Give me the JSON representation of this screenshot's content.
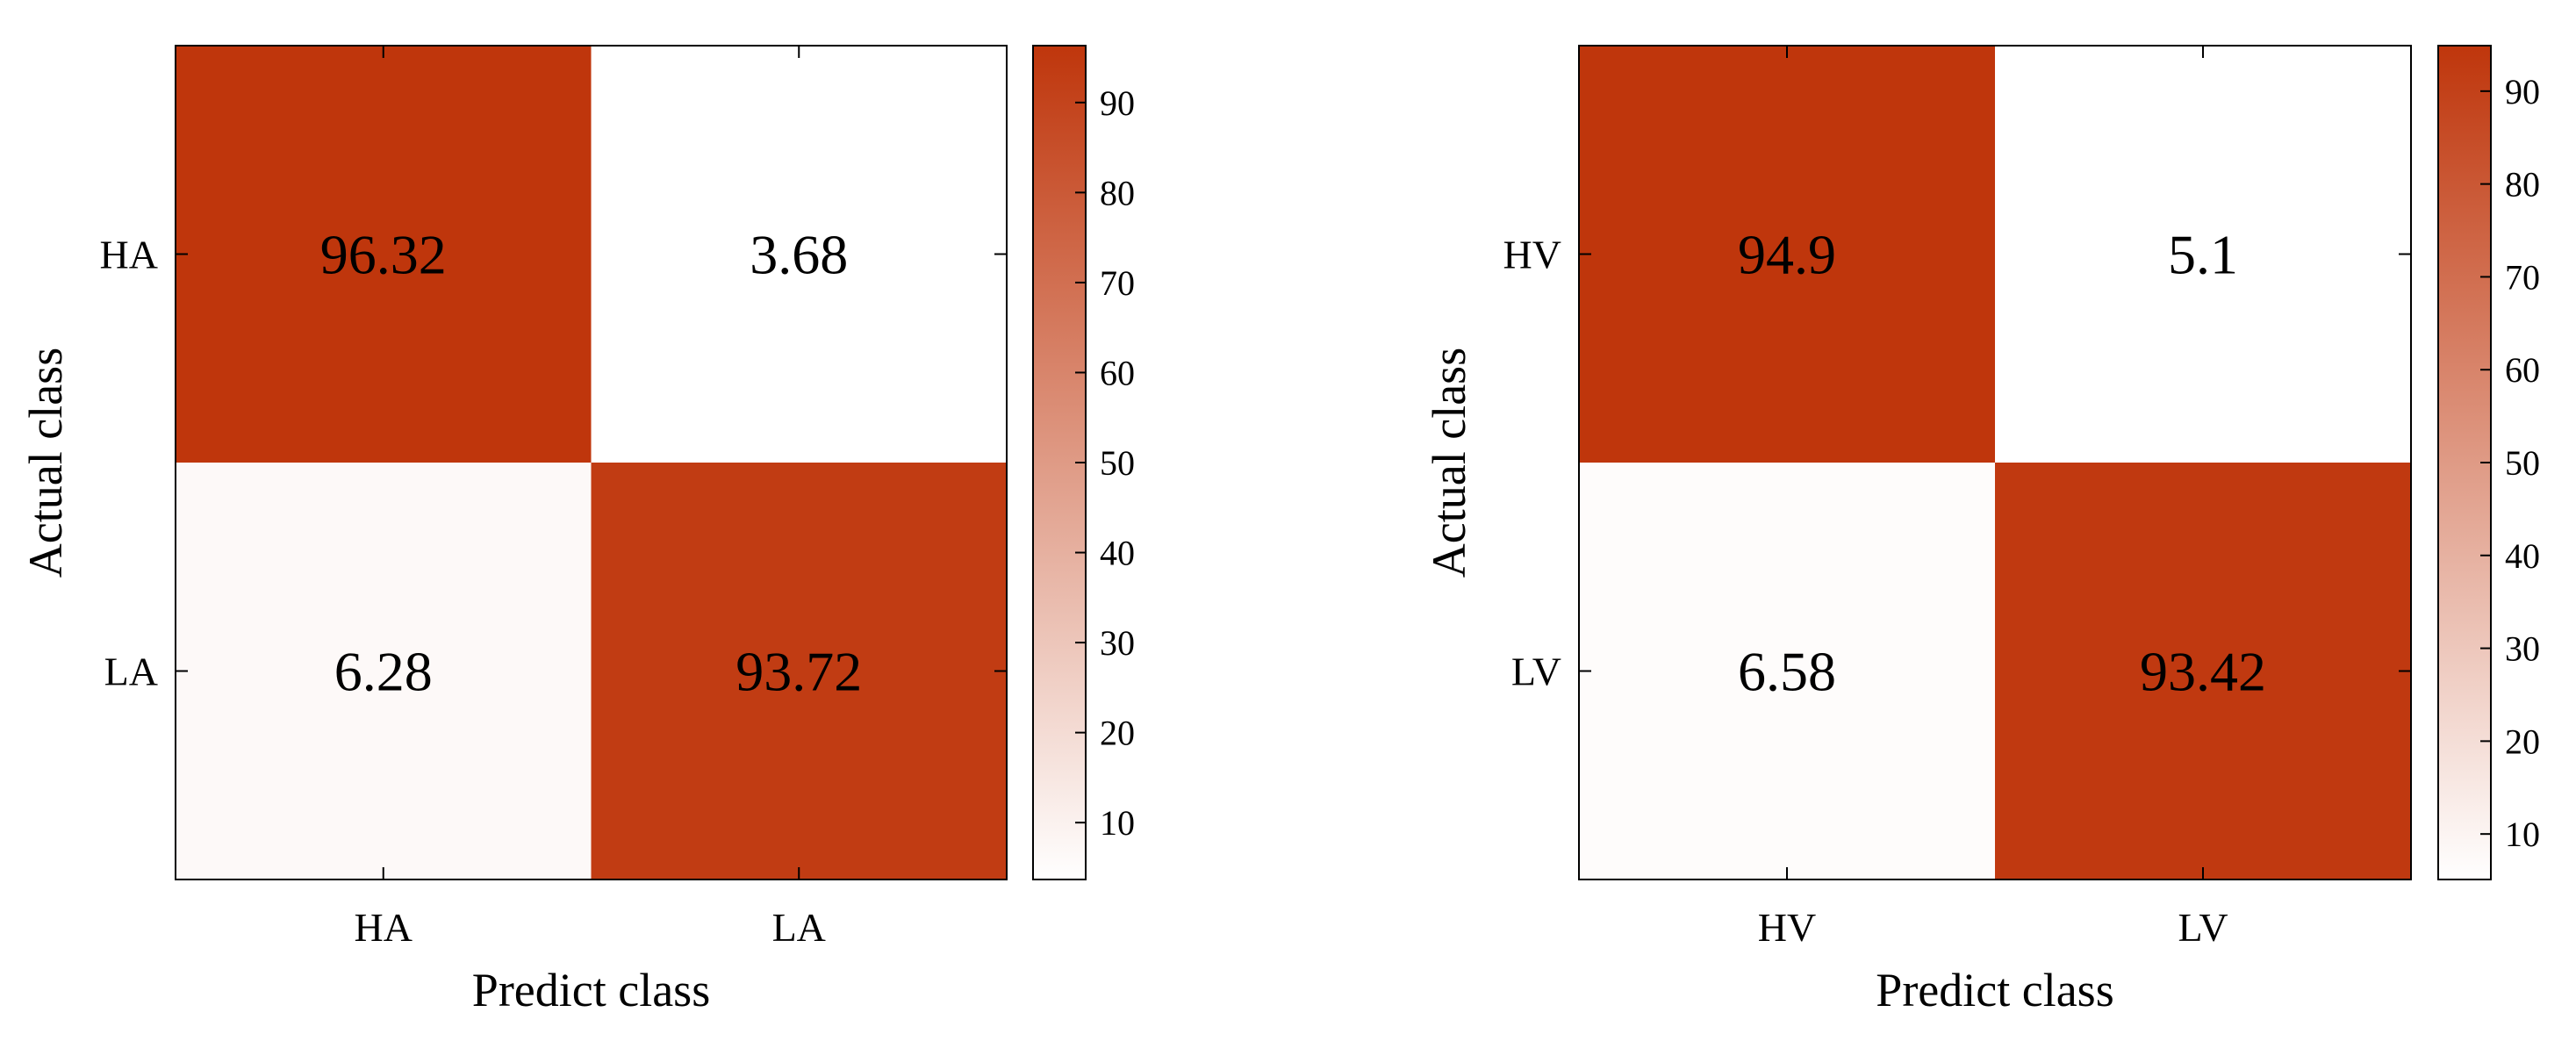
{
  "colormap": {
    "low": "#ffffff",
    "high": "#bf360c"
  },
  "chart_data": [
    {
      "type": "heatmap",
      "title": "",
      "xlabel": "Predict class",
      "ylabel": "Actual class",
      "row_labels": [
        "HA",
        "LA"
      ],
      "col_labels": [
        "HA",
        "LA"
      ],
      "values": [
        [
          96.32,
          3.68
        ],
        [
          6.28,
          93.72
        ]
      ],
      "value_labels": [
        [
          "96.32",
          "3.68"
        ],
        [
          "6.28",
          "93.72"
        ]
      ],
      "colorbar": {
        "range": [
          3.68,
          96.32
        ],
        "ticks": [
          10,
          20,
          30,
          40,
          50,
          60,
          70,
          80,
          90
        ],
        "tick_labels": [
          "10",
          "20",
          "30",
          "40",
          "50",
          "60",
          "70",
          "80",
          "90"
        ]
      }
    },
    {
      "type": "heatmap",
      "title": "",
      "xlabel": "Predict class",
      "ylabel": "Actual class",
      "row_labels": [
        "HV",
        "LV"
      ],
      "col_labels": [
        "HV",
        "LV"
      ],
      "values": [
        [
          94.9,
          5.1
        ],
        [
          6.58,
          93.42
        ]
      ],
      "value_labels": [
        [
          "94.9",
          "5.1"
        ],
        [
          "6.58",
          "93.42"
        ]
      ],
      "colorbar": {
        "range": [
          5.1,
          94.9
        ],
        "ticks": [
          10,
          20,
          30,
          40,
          50,
          60,
          70,
          80,
          90
        ],
        "tick_labels": [
          "10",
          "20",
          "30",
          "40",
          "50",
          "60",
          "70",
          "80",
          "90"
        ]
      }
    }
  ]
}
